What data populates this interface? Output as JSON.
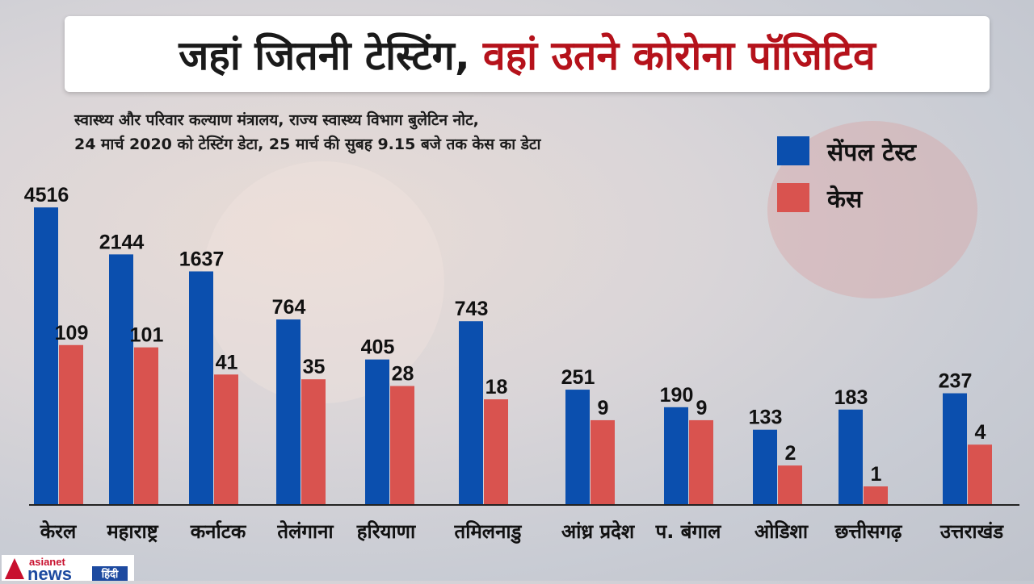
{
  "title": {
    "part1": "जहां जितनी टेस्टिंग,",
    "part2": "वहां उतने कोरोना पॉजिटिव"
  },
  "subtitle": {
    "line1": "स्वास्थ्य और परिवार कल्याण मंत्रालय, राज्य स्वास्थ्य विभाग बुलेटिन नोट,",
    "line2": "24 मार्च 2020 को टेस्टिंग डेटा, 25 मार्च की सुबह 9.15 बजे तक केस का डेटा"
  },
  "logo": {
    "text": "asianet news हिंदी"
  },
  "chart_data": {
    "type": "bar",
    "categories": [
      "केरल",
      "महाराष्ट्र",
      "कर्नाटक",
      "तेलंगाना",
      "हरियाणा",
      "तमिलनाडु",
      "आंध्र प्रदेश",
      "प. बंगाल",
      "ओडिशा",
      "छत्तीसगढ़",
      "उत्तराखंड"
    ],
    "series": [
      {
        "name": "सेंपल टेस्ट",
        "color": "#0b4fae",
        "values": [
          4516,
          2144,
          1637,
          764,
          405,
          743,
          251,
          190,
          133,
          183,
          237
        ]
      },
      {
        "name": "केस",
        "color": "#d9534f",
        "values": [
          109,
          101,
          41,
          35,
          28,
          18,
          9,
          9,
          2,
          1,
          4
        ]
      }
    ],
    "scale": "non-linear (not to scale)",
    "grid": false,
    "legend": "top-right",
    "data_labels": true
  }
}
